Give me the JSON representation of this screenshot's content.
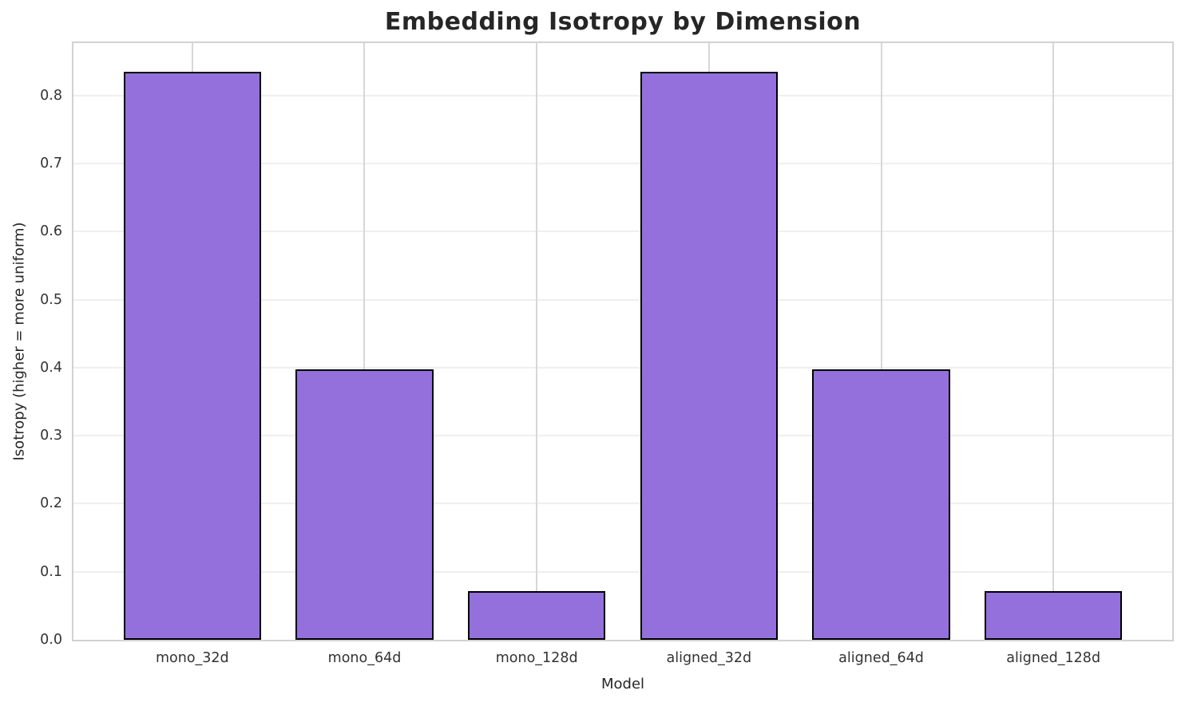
{
  "chart_data": {
    "type": "bar",
    "title": "Embedding Isotropy by Dimension",
    "xlabel": "Model",
    "ylabel": "Isotropy (higher = more uniform)",
    "categories": [
      "mono_32d",
      "mono_64d",
      "mono_128d",
      "aligned_32d",
      "aligned_64d",
      "aligned_128d"
    ],
    "values": [
      0.835,
      0.397,
      0.071,
      0.835,
      0.397,
      0.071
    ],
    "ylim": [
      0,
      0.877
    ],
    "xlim": [
      -0.69,
      5.69
    ],
    "bar_width": 0.8,
    "yticks": [
      0.0,
      0.1,
      0.2,
      0.3,
      0.4,
      0.5,
      0.6,
      0.7,
      0.8
    ],
    "ytick_labels": [
      "0.0",
      "0.1",
      "0.2",
      "0.3",
      "0.4",
      "0.5",
      "0.6",
      "0.7",
      "0.8"
    ],
    "grid": true,
    "legend": "none"
  },
  "colors": {
    "bar_fill": "#9370DB",
    "bar_edge": "#000000",
    "grid_horizontal": "#efefef",
    "grid_vertical": "#d7d7d7",
    "spine": "#d2d2d2",
    "background": "#ffffff",
    "title_text": "#262626",
    "label_text": "#262626",
    "tick_text": "#333333"
  }
}
